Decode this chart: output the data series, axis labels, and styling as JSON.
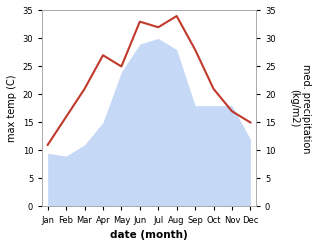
{
  "months": [
    "Jan",
    "Feb",
    "Mar",
    "Apr",
    "May",
    "Jun",
    "Jul",
    "Aug",
    "Sep",
    "Oct",
    "Nov",
    "Dec"
  ],
  "temperature": [
    11,
    16,
    21,
    27,
    25,
    33,
    32,
    34,
    28,
    21,
    17,
    15
  ],
  "precipitation": [
    9.5,
    9.0,
    11.0,
    15.0,
    24.0,
    29.0,
    30.0,
    28.0,
    18.0,
    18.0,
    18.0,
    12.0
  ],
  "temp_color": "#c0392b",
  "precip_fill_color": "#c5d8f5",
  "precip_edge_color": "#aec6e8",
  "ylim": [
    0,
    35
  ],
  "yticks": [
    0,
    5,
    10,
    15,
    20,
    25,
    30,
    35
  ],
  "xlabel": "date (month)",
  "ylabel_left": "max temp (C)",
  "ylabel_right": "med. precipitation\n(kg/m2)",
  "bg_color": "#ffffff",
  "temp_linewidth": 1.5,
  "xlabel_fontsize": 7.5,
  "ylabel_fontsize": 7.0,
  "tick_fontsize": 6.0
}
